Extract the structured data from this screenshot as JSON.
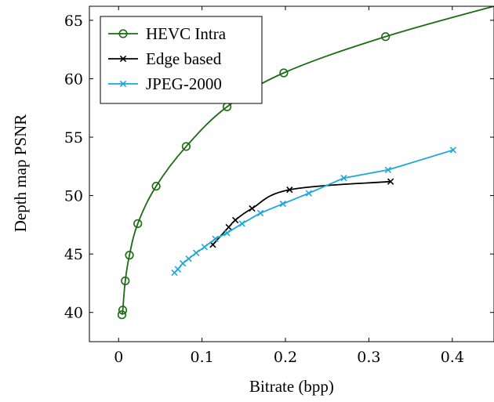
{
  "chart_data": {
    "type": "line",
    "title": "",
    "xlabel": "Bitrate (bpp)",
    "ylabel": "Depth map PSNR",
    "xlim": [
      -0.035,
      0.45
    ],
    "ylim": [
      37.5,
      66.2
    ],
    "xticks": [
      0,
      0.1,
      0.2,
      0.3,
      0.4
    ],
    "yticks": [
      40,
      45,
      50,
      55,
      60,
      65
    ],
    "xtick_labels": [
      "0",
      "0.1",
      "0.2",
      "0.3",
      "0.4"
    ],
    "ytick_labels": [
      "40",
      "45",
      "50",
      "55",
      "60",
      "65"
    ],
    "grid": false,
    "legend_position": "top-left",
    "series": [
      {
        "name": "HEVC Intra",
        "color": "#1a6b12",
        "marker": "circle",
        "smooth": true,
        "x": [
          0.004,
          0.005,
          0.008,
          0.013,
          0.023,
          0.045,
          0.081,
          0.13,
          0.198,
          0.32,
          0.46
        ],
        "y": [
          39.8,
          40.2,
          42.7,
          44.9,
          47.6,
          50.8,
          54.2,
          57.6,
          60.5,
          63.6,
          66.4
        ],
        "marked": [
          true,
          true,
          true,
          true,
          true,
          true,
          true,
          true,
          true,
          true,
          false
        ]
      },
      {
        "name": "Edge based",
        "color": "#000000",
        "marker": "x",
        "smooth": true,
        "x": [
          0.113,
          0.132,
          0.14,
          0.16,
          0.205,
          0.326
        ],
        "y": [
          45.8,
          47.3,
          47.9,
          48.9,
          50.5,
          51.2
        ]
      },
      {
        "name": "JPEG-2000",
        "color": "#1aa7dc",
        "marker": "x",
        "smooth": false,
        "x": [
          0.067,
          0.071,
          0.077,
          0.084,
          0.093,
          0.103,
          0.116,
          0.13,
          0.148,
          0.17,
          0.197,
          0.228,
          0.27,
          0.323,
          0.401
        ],
        "y": [
          43.4,
          43.7,
          44.2,
          44.6,
          45.1,
          45.6,
          46.3,
          46.8,
          47.6,
          48.5,
          49.3,
          50.2,
          51.5,
          52.2,
          53.9
        ]
      }
    ]
  }
}
